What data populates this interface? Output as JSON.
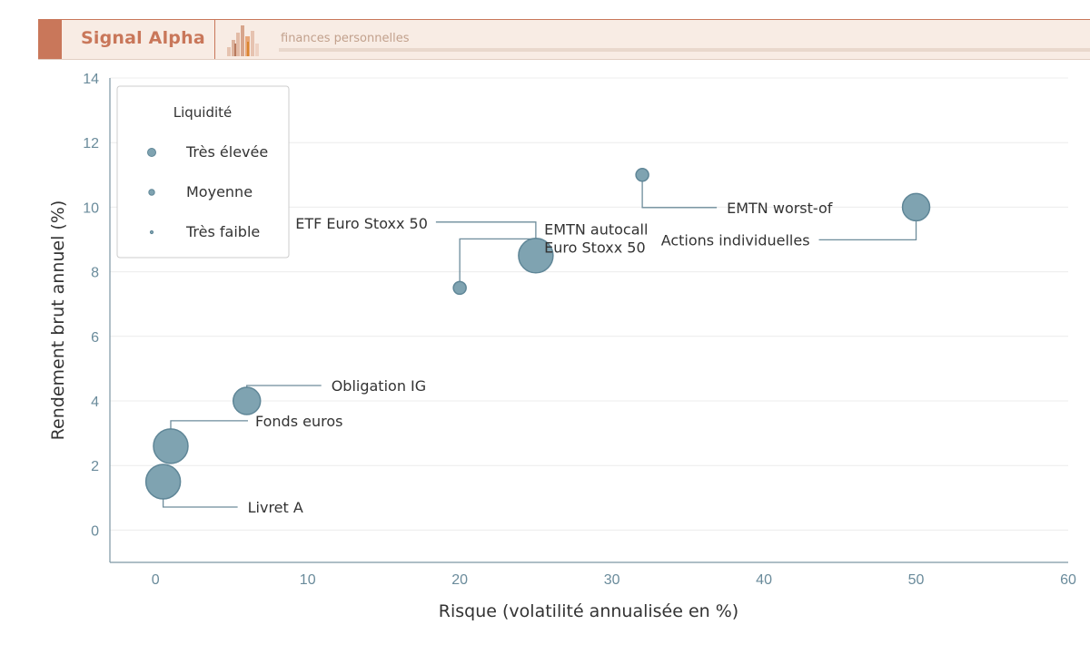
{
  "header": {
    "brand": "Signal Alpha",
    "tagline": "finances personnelles",
    "icon": "bar-chart-icon",
    "accent_color": "#c9775a"
  },
  "chart_data": {
    "type": "scatter",
    "xlabel": "Risque (volatilité annualisée en %)",
    "ylabel": "Rendement brut annuel (%)",
    "xlim": [
      -3,
      60
    ],
    "ylim": [
      -1,
      14
    ],
    "xticks": [
      0,
      10,
      20,
      30,
      40,
      50,
      60
    ],
    "yticks": [
      0,
      2,
      4,
      6,
      8,
      10,
      12,
      14
    ],
    "grid": "horizontal",
    "marker_color": "#7fa3b1",
    "legend": {
      "title": "Liquidité",
      "placement": "top-left",
      "entries": [
        {
          "label": "Très élevée",
          "size": "large"
        },
        {
          "label": "Moyenne",
          "size": "medium"
        },
        {
          "label": "Très faible",
          "size": "small"
        }
      ]
    },
    "points": [
      {
        "label": "Livret A",
        "x": 0.5,
        "y": 1.5,
        "liquidity": "Très élevée"
      },
      {
        "label": "Fonds euros",
        "x": 1,
        "y": 2.6,
        "liquidity": "Très élevée"
      },
      {
        "label": "Obligation IG",
        "x": 6,
        "y": 4,
        "liquidity": "Moyenne"
      },
      {
        "label": "EMTN autocall Euro Stoxx 50",
        "x": 20,
        "y": 7.5,
        "liquidity": "Très faible"
      },
      {
        "label": "ETF Euro Stoxx 50",
        "x": 25,
        "y": 8.5,
        "liquidity": "Très élevée"
      },
      {
        "label": "EMTN worst-of",
        "x": 32,
        "y": 11,
        "liquidity": "Très faible"
      },
      {
        "label": "Actions individuelles",
        "x": 50,
        "y": 10,
        "liquidity": "Moyenne"
      }
    ]
  }
}
